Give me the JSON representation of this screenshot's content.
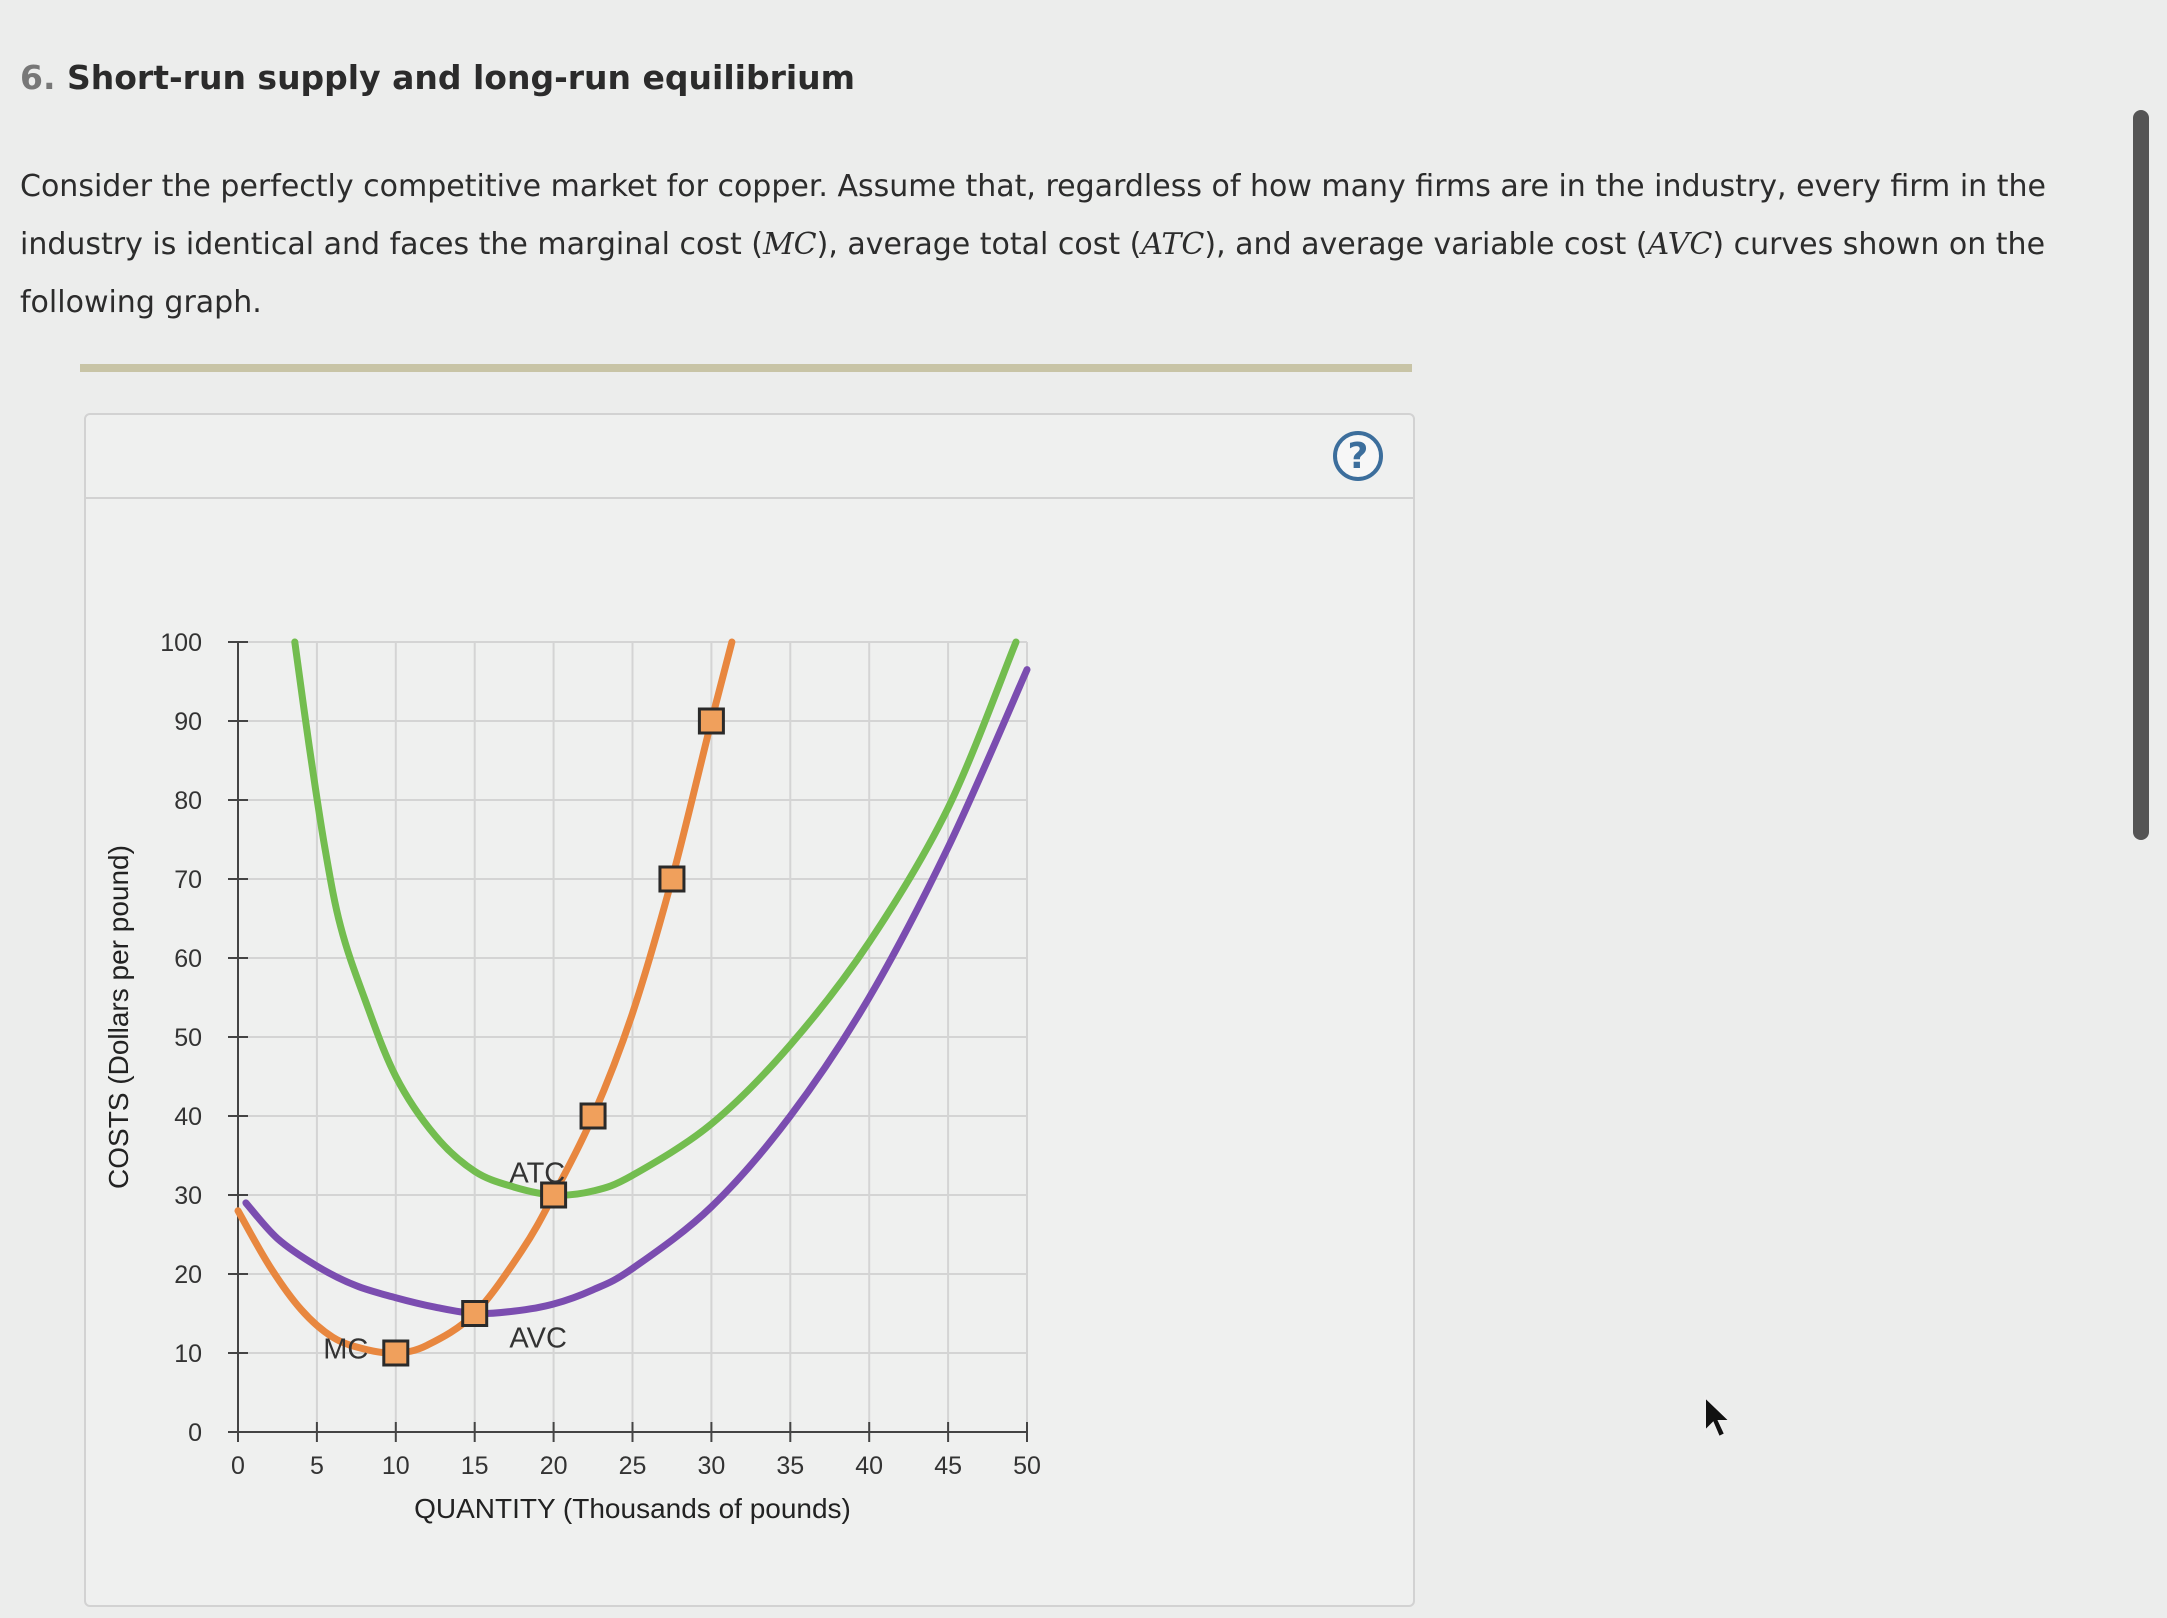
{
  "question": {
    "number": "6.",
    "title": "Short-run supply and long-run equilibrium"
  },
  "intro": {
    "part1": "Consider the perfectly competitive market for copper. Assume that, regardless of how many firms are in the industry, every firm in the industry is identical and faces the marginal cost (",
    "mc": "MC",
    "part2": "), average total cost (",
    "atc": "ATC",
    "part3": "), and average variable cost (",
    "avc": "AVC",
    "part4": ") curves shown on the following graph."
  },
  "help": {
    "label": "?"
  },
  "chart_data": {
    "type": "line",
    "xlabel": "QUANTITY (Thousands of pounds)",
    "ylabel": "COSTS (Dollars per pound)",
    "xlim": [
      0,
      50
    ],
    "ylim": [
      0,
      100
    ],
    "xticks": [
      0,
      5,
      10,
      15,
      20,
      25,
      30,
      35,
      40,
      45,
      50
    ],
    "yticks": [
      0,
      10,
      20,
      30,
      40,
      50,
      60,
      70,
      80,
      90,
      100
    ],
    "grid": true,
    "series": [
      {
        "name": "MC",
        "color": "#e8873f",
        "points": [
          [
            0,
            28
          ],
          [
            2,
            21
          ],
          [
            4,
            15.5
          ],
          [
            6,
            12
          ],
          [
            8,
            10.5
          ],
          [
            10,
            10
          ],
          [
            12,
            11
          ],
          [
            15,
            15
          ],
          [
            18,
            23
          ],
          [
            20,
            30
          ],
          [
            22.5,
            40
          ],
          [
            25,
            53
          ],
          [
            27.5,
            70
          ],
          [
            30,
            90
          ],
          [
            31.3,
            100
          ]
        ],
        "markers": [
          [
            10,
            10
          ],
          [
            15,
            15
          ],
          [
            20,
            30
          ],
          [
            22.5,
            40
          ],
          [
            27.5,
            70
          ],
          [
            30,
            90
          ]
        ]
      },
      {
        "name": "ATC",
        "color": "#73bd4f",
        "points": [
          [
            3.6,
            100
          ],
          [
            4.5,
            87
          ],
          [
            5.5,
            74
          ],
          [
            6.5,
            64
          ],
          [
            8,
            55
          ],
          [
            10,
            45
          ],
          [
            12.5,
            37.5
          ],
          [
            15,
            33
          ],
          [
            17.5,
            31
          ],
          [
            20,
            30
          ],
          [
            22.5,
            30.5
          ],
          [
            25,
            32.5
          ],
          [
            30,
            39
          ],
          [
            35,
            49
          ],
          [
            40,
            62
          ],
          [
            45,
            79
          ],
          [
            49.3,
            100
          ]
        ]
      },
      {
        "name": "AVC",
        "color": "#7b4db0",
        "points": [
          [
            0.5,
            29
          ],
          [
            2.5,
            24.5
          ],
          [
            5,
            21
          ],
          [
            7.5,
            18.5
          ],
          [
            10,
            17
          ],
          [
            12.5,
            15.8
          ],
          [
            15,
            15
          ],
          [
            17.5,
            15.3
          ],
          [
            20,
            16.2
          ],
          [
            22.5,
            18
          ],
          [
            25,
            20.7
          ],
          [
            30,
            28.5
          ],
          [
            35,
            40
          ],
          [
            40,
            55
          ],
          [
            45,
            74
          ],
          [
            50,
            96.5
          ]
        ]
      }
    ],
    "labels": [
      {
        "text": "MC",
        "x": 5.4,
        "y": 9.3
      },
      {
        "text": "ATC",
        "x": 17.2,
        "y": 31.6
      },
      {
        "text": "AVC",
        "x": 17.2,
        "y": 10.7
      }
    ]
  }
}
